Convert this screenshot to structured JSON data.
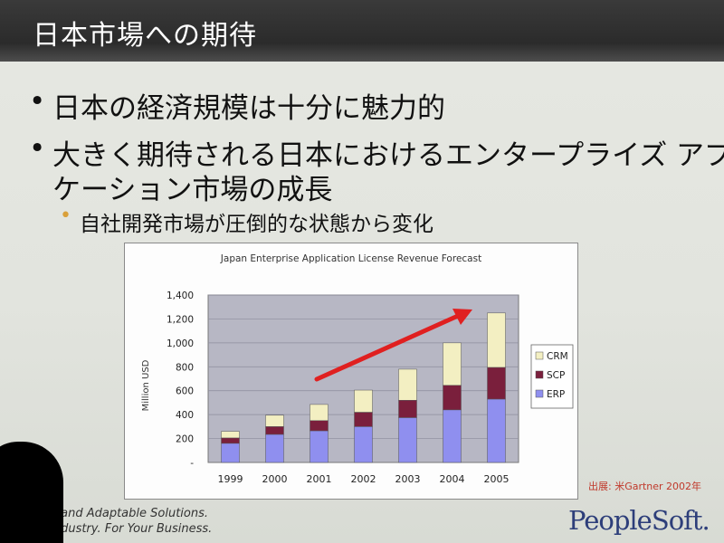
{
  "slide": {
    "title": "日本市場への期待",
    "bullets": [
      {
        "text": "日本の経済規模は十分に魅力的"
      },
      {
        "text": "大きく期待される日本におけるエンタープライズ アプリ"
      },
      {
        "text": "ケーション市場の成長"
      }
    ],
    "sub_bullet": "自社開発市場が圧倒的な状態から変化",
    "bullet_symbol": "•",
    "source": "出展: 米Gartner 2002年",
    "footer_lines": [
      "e and Adaptable Solutions.",
      "Industry. For Your Business."
    ],
    "logo": "PeopleSoft."
  },
  "chart_data": {
    "type": "bar",
    "stacked": true,
    "title": "Japan Enterprise Application License Revenue Forecast",
    "xlabel": "",
    "ylabel": "Million USD",
    "categories": [
      "1999",
      "2000",
      "2001",
      "2002",
      "2003",
      "2004",
      "2005"
    ],
    "ylim": [
      0,
      1400
    ],
    "yticks": [
      0,
      200,
      400,
      600,
      800,
      1000,
      1200,
      1400
    ],
    "ytick_labels": [
      "-",
      "200",
      "400",
      "600",
      "800",
      "1,000",
      "1,200",
      "1,400"
    ],
    "series": [
      {
        "name": "ERP",
        "color": "#8f8fef",
        "values": [
          160,
          235,
          265,
          300,
          375,
          440,
          530
        ]
      },
      {
        "name": "SCP",
        "color": "#7a1f3c",
        "values": [
          45,
          65,
          85,
          120,
          145,
          205,
          265
        ]
      },
      {
        "name": "CRM",
        "color": "#f3efc2",
        "values": [
          55,
          95,
          135,
          185,
          260,
          355,
          455
        ]
      }
    ],
    "legend_position": "right",
    "grid": true,
    "plot_background": "#b7b7c4",
    "annotation": "red upward arrow"
  }
}
